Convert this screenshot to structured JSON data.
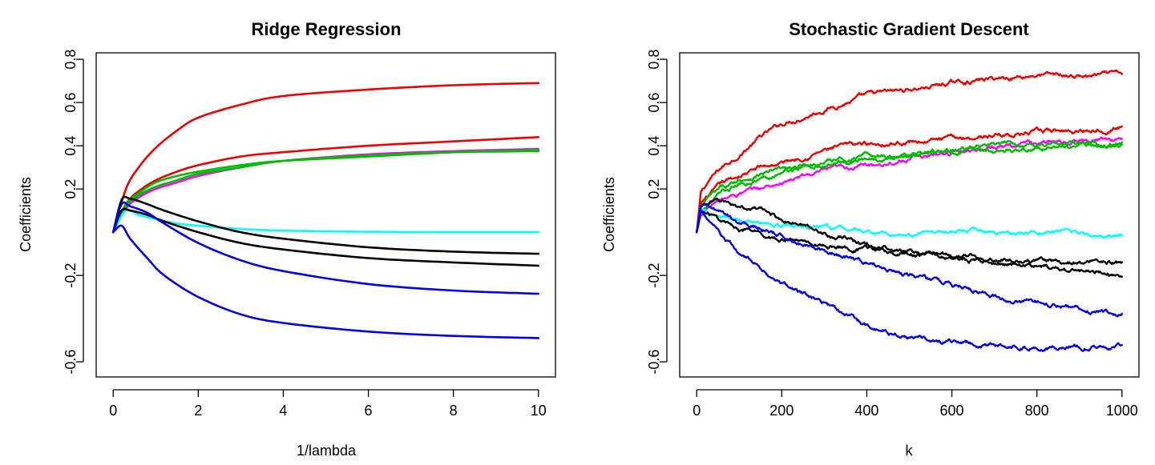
{
  "chart_data": [
    {
      "type": "line",
      "title": "Ridge Regression",
      "xlabel": "1/lambda",
      "ylabel": "Coefficients",
      "xlim": [
        0,
        10
      ],
      "ylim": [
        -0.67,
        0.83
      ],
      "xticks": [
        0,
        2,
        4,
        6,
        8,
        10
      ],
      "xtick_labels": [
        "0",
        "2",
        "4",
        "6",
        "8",
        "10"
      ],
      "yticks": [
        -0.6,
        -0.2,
        0.2,
        0.4,
        0.6,
        0.8
      ],
      "ytick_labels": [
        "-0.6",
        "-0.2",
        "0.2",
        "0.4",
        "0.6",
        "0.8"
      ],
      "grid": false,
      "series": [
        {
          "color": "#ee0000",
          "x": [
            0,
            0.3,
            0.6,
            1,
            1.5,
            2,
            3,
            4,
            6,
            8,
            10
          ],
          "y": [
            0,
            0.2,
            0.3,
            0.39,
            0.47,
            0.53,
            0.59,
            0.63,
            0.66,
            0.68,
            0.69
          ]
        },
        {
          "color": "#ee0000",
          "x": [
            0,
            0.3,
            0.6,
            1,
            1.5,
            2,
            3,
            4,
            6,
            8,
            10
          ],
          "y": [
            0,
            0.13,
            0.19,
            0.24,
            0.28,
            0.31,
            0.35,
            0.37,
            0.4,
            0.42,
            0.44
          ]
        },
        {
          "color": "#ff00ff",
          "x": [
            0,
            0.3,
            0.6,
            1,
            1.5,
            2,
            3,
            4,
            6,
            8,
            10
          ],
          "y": [
            0,
            0.11,
            0.16,
            0.2,
            0.23,
            0.26,
            0.3,
            0.33,
            0.36,
            0.375,
            0.385
          ]
        },
        {
          "color": "#00bb00",
          "x": [
            0,
            0.3,
            0.6,
            1,
            1.5,
            2,
            3,
            4,
            6,
            8,
            10
          ],
          "y": [
            0,
            0.13,
            0.18,
            0.23,
            0.26,
            0.28,
            0.31,
            0.33,
            0.35,
            0.37,
            0.38
          ]
        },
        {
          "color": "#00bb00",
          "x": [
            0,
            0.3,
            0.6,
            1,
            1.5,
            2,
            3,
            4,
            6,
            8,
            10
          ],
          "y": [
            0,
            0.12,
            0.17,
            0.21,
            0.24,
            0.27,
            0.3,
            0.33,
            0.355,
            0.37,
            0.375
          ]
        },
        {
          "color": "#00ffff",
          "x": [
            0,
            0.3,
            0.6,
            1,
            1.5,
            2,
            3,
            4,
            6,
            8,
            10
          ],
          "y": [
            0,
            0.1,
            0.08,
            0.06,
            0.04,
            0.03,
            0.015,
            0.007,
            0.002,
            0,
            0
          ]
        },
        {
          "color": "#000000",
          "x": [
            0,
            0.2,
            0.4,
            0.8,
            1.2,
            2,
            3,
            4,
            6,
            8,
            10
          ],
          "y": [
            0,
            0.15,
            0.155,
            0.13,
            0.1,
            0.05,
            0.0,
            -0.03,
            -0.07,
            -0.09,
            -0.1
          ]
        },
        {
          "color": "#000000",
          "x": [
            0,
            0.2,
            0.4,
            0.8,
            1.2,
            2,
            3,
            4,
            6,
            8,
            10
          ],
          "y": [
            0,
            0.1,
            0.1,
            0.08,
            0.05,
            0.0,
            -0.05,
            -0.08,
            -0.12,
            -0.14,
            -0.155
          ]
        },
        {
          "color": "#0000ee",
          "x": [
            0,
            0.2,
            0.4,
            0.8,
            1.2,
            2,
            3,
            4,
            6,
            8,
            10
          ],
          "y": [
            0,
            0.13,
            0.12,
            0.09,
            0.04,
            -0.05,
            -0.13,
            -0.18,
            -0.24,
            -0.27,
            -0.285
          ]
        },
        {
          "color": "#0000ee",
          "x": [
            0,
            0.2,
            0.4,
            0.8,
            1.2,
            2,
            3,
            4,
            6,
            8,
            10
          ],
          "y": [
            0,
            0.03,
            -0.03,
            -0.12,
            -0.2,
            -0.3,
            -0.38,
            -0.42,
            -0.46,
            -0.48,
            -0.49
          ]
        }
      ]
    },
    {
      "type": "line",
      "title": "Stochastic Gradient Descent",
      "xlabel": "k",
      "ylabel": "Coefficients",
      "xlim": [
        0,
        1000
      ],
      "ylim": [
        -0.67,
        0.83
      ],
      "xticks": [
        0,
        200,
        400,
        600,
        800,
        1000
      ],
      "xtick_labels": [
        "0",
        "200",
        "400",
        "600",
        "800",
        "1000"
      ],
      "yticks": [
        -0.6,
        -0.2,
        0.2,
        0.4,
        0.6,
        0.8
      ],
      "ytick_labels": [
        "-0.6",
        "-0.2",
        "0.2",
        "0.4",
        "0.6",
        "0.8"
      ],
      "grid": false,
      "series": [
        {
          "color": "#ee0000",
          "x": [
            0,
            10,
            30,
            60,
            100,
            150,
            200,
            300,
            400,
            500,
            600,
            700,
            800,
            900,
            1000
          ],
          "y": [
            0,
            0.18,
            0.24,
            0.3,
            0.36,
            0.44,
            0.5,
            0.57,
            0.63,
            0.66,
            0.69,
            0.71,
            0.73,
            0.72,
            0.73
          ]
        },
        {
          "color": "#ee0000",
          "x": [
            0,
            10,
            30,
            60,
            100,
            150,
            200,
            300,
            400,
            500,
            600,
            700,
            800,
            900,
            1000
          ],
          "y": [
            0,
            0.13,
            0.17,
            0.22,
            0.26,
            0.3,
            0.32,
            0.38,
            0.41,
            0.42,
            0.43,
            0.45,
            0.46,
            0.47,
            0.49
          ]
        },
        {
          "color": "#ff00ff",
          "x": [
            0,
            10,
            30,
            60,
            100,
            150,
            200,
            300,
            400,
            500,
            600,
            700,
            800,
            900,
            1000
          ],
          "y": [
            0,
            0.08,
            0.12,
            0.15,
            0.18,
            0.2,
            0.23,
            0.28,
            0.31,
            0.34,
            0.37,
            0.4,
            0.41,
            0.42,
            0.43
          ]
        },
        {
          "color": "#00bb00",
          "x": [
            0,
            10,
            30,
            60,
            100,
            150,
            200,
            300,
            400,
            500,
            600,
            700,
            800,
            900,
            1000
          ],
          "y": [
            0,
            0.11,
            0.16,
            0.2,
            0.24,
            0.27,
            0.29,
            0.31,
            0.34,
            0.36,
            0.38,
            0.4,
            0.41,
            0.41,
            0.41
          ]
        },
        {
          "color": "#00bb00",
          "x": [
            0,
            10,
            30,
            60,
            100,
            150,
            200,
            300,
            400,
            500,
            600,
            700,
            800,
            900,
            1000
          ],
          "y": [
            0,
            0.1,
            0.14,
            0.18,
            0.22,
            0.25,
            0.28,
            0.32,
            0.35,
            0.36,
            0.37,
            0.38,
            0.39,
            0.4,
            0.4
          ]
        },
        {
          "color": "#00ffff",
          "x": [
            0,
            10,
            30,
            60,
            100,
            150,
            200,
            300,
            400,
            500,
            600,
            700,
            800,
            900,
            1000
          ],
          "y": [
            0,
            0.1,
            0.08,
            0.06,
            0.05,
            0.04,
            0.03,
            0.02,
            0.0,
            -0.01,
            0.0,
            0.0,
            0.0,
            0.0,
            -0.02
          ]
        },
        {
          "color": "#000000",
          "x": [
            0,
            10,
            30,
            60,
            100,
            150,
            200,
            300,
            400,
            500,
            600,
            700,
            800,
            900,
            1000
          ],
          "y": [
            0,
            0.12,
            0.14,
            0.14,
            0.12,
            0.1,
            0.06,
            0.0,
            -0.06,
            -0.09,
            -0.11,
            -0.12,
            -0.13,
            -0.14,
            -0.14
          ]
        },
        {
          "color": "#000000",
          "x": [
            0,
            10,
            30,
            60,
            100,
            150,
            200,
            300,
            400,
            500,
            600,
            700,
            800,
            900,
            1000
          ],
          "y": [
            0,
            0.1,
            0.08,
            0.05,
            0.02,
            -0.01,
            -0.03,
            -0.06,
            -0.08,
            -0.1,
            -0.12,
            -0.14,
            -0.16,
            -0.18,
            -0.19
          ]
        },
        {
          "color": "#0000ee",
          "x": [
            0,
            10,
            30,
            60,
            100,
            150,
            200,
            300,
            400,
            500,
            600,
            700,
            800,
            900,
            1000
          ],
          "y": [
            0,
            0.12,
            0.11,
            0.08,
            0.05,
            0.02,
            -0.02,
            -0.08,
            -0.14,
            -0.2,
            -0.24,
            -0.3,
            -0.33,
            -0.35,
            -0.37
          ]
        },
        {
          "color": "#0000ee",
          "x": [
            0,
            10,
            30,
            60,
            100,
            150,
            200,
            300,
            400,
            500,
            600,
            700,
            800,
            900,
            1000
          ],
          "y": [
            0,
            0.1,
            0.05,
            -0.03,
            -0.1,
            -0.16,
            -0.24,
            -0.33,
            -0.43,
            -0.48,
            -0.51,
            -0.53,
            -0.53,
            -0.53,
            -0.52
          ]
        }
      ]
    }
  ]
}
